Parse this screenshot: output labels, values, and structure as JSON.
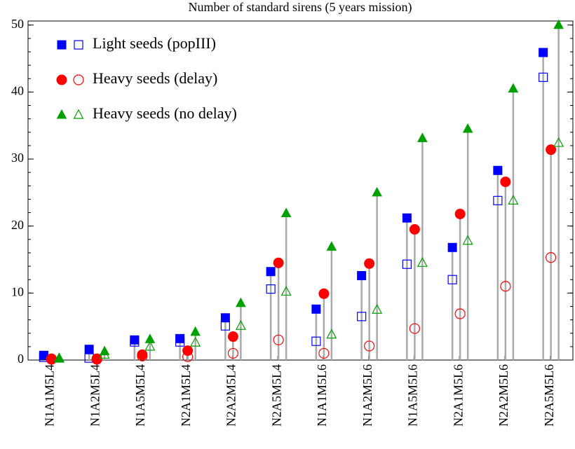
{
  "chart_data": {
    "type": "stem",
    "title": "Number of standard sirens (5 years mission)",
    "categories": [
      "N1A1M5L4",
      "N1A2M5L4",
      "N1A5M5L4",
      "N2A1M5L4",
      "N2A2M5L4",
      "N2A5M5L4",
      "N1A1M5L6",
      "N1A2M5L6",
      "N1A5M5L6",
      "N2A1M5L6",
      "N2A2M5L6",
      "N2A5M5L6"
    ],
    "series": [
      {
        "name": "Light seeds (popIII)",
        "color": "#0000ff",
        "marker": "square",
        "values": [
          0.7,
          1.6,
          3.0,
          3.2,
          6.3,
          13.2,
          7.6,
          12.6,
          21.2,
          16.8,
          28.3,
          45.9
        ],
        "open_values": [
          0.4,
          0.3,
          2.7,
          2.7,
          5.1,
          10.6,
          2.8,
          6.5,
          14.3,
          12.0,
          23.8,
          42.2
        ]
      },
      {
        "name": "Heavy seeds (delay)",
        "color": "#ff0000",
        "marker": "circle",
        "values": [
          0.2,
          0.2,
          0.8,
          1.4,
          3.5,
          14.5,
          9.9,
          14.4,
          19.5,
          21.8,
          26.6,
          31.4
        ],
        "open_values": [
          0.1,
          0.1,
          0.6,
          0.5,
          1.0,
          3.0,
          1.0,
          2.1,
          4.7,
          6.9,
          11.0,
          15.3
        ]
      },
      {
        "name": "Heavy seeds (no delay)",
        "color": "#00a000",
        "marker": "triangle",
        "values": [
          0.3,
          1.3,
          3.1,
          4.2,
          8.5,
          21.9,
          16.9,
          25.0,
          33.1,
          34.5,
          40.5,
          50.0
        ],
        "open_values": [
          0.2,
          0.8,
          2.0,
          2.6,
          5.1,
          10.2,
          3.8,
          7.5,
          14.5,
          17.8,
          23.8,
          32.4
        ]
      }
    ],
    "ylim": [
      0,
      50.6
    ],
    "yticks": [
      0,
      10,
      20,
      30,
      40,
      50
    ],
    "legend": "upper left"
  }
}
